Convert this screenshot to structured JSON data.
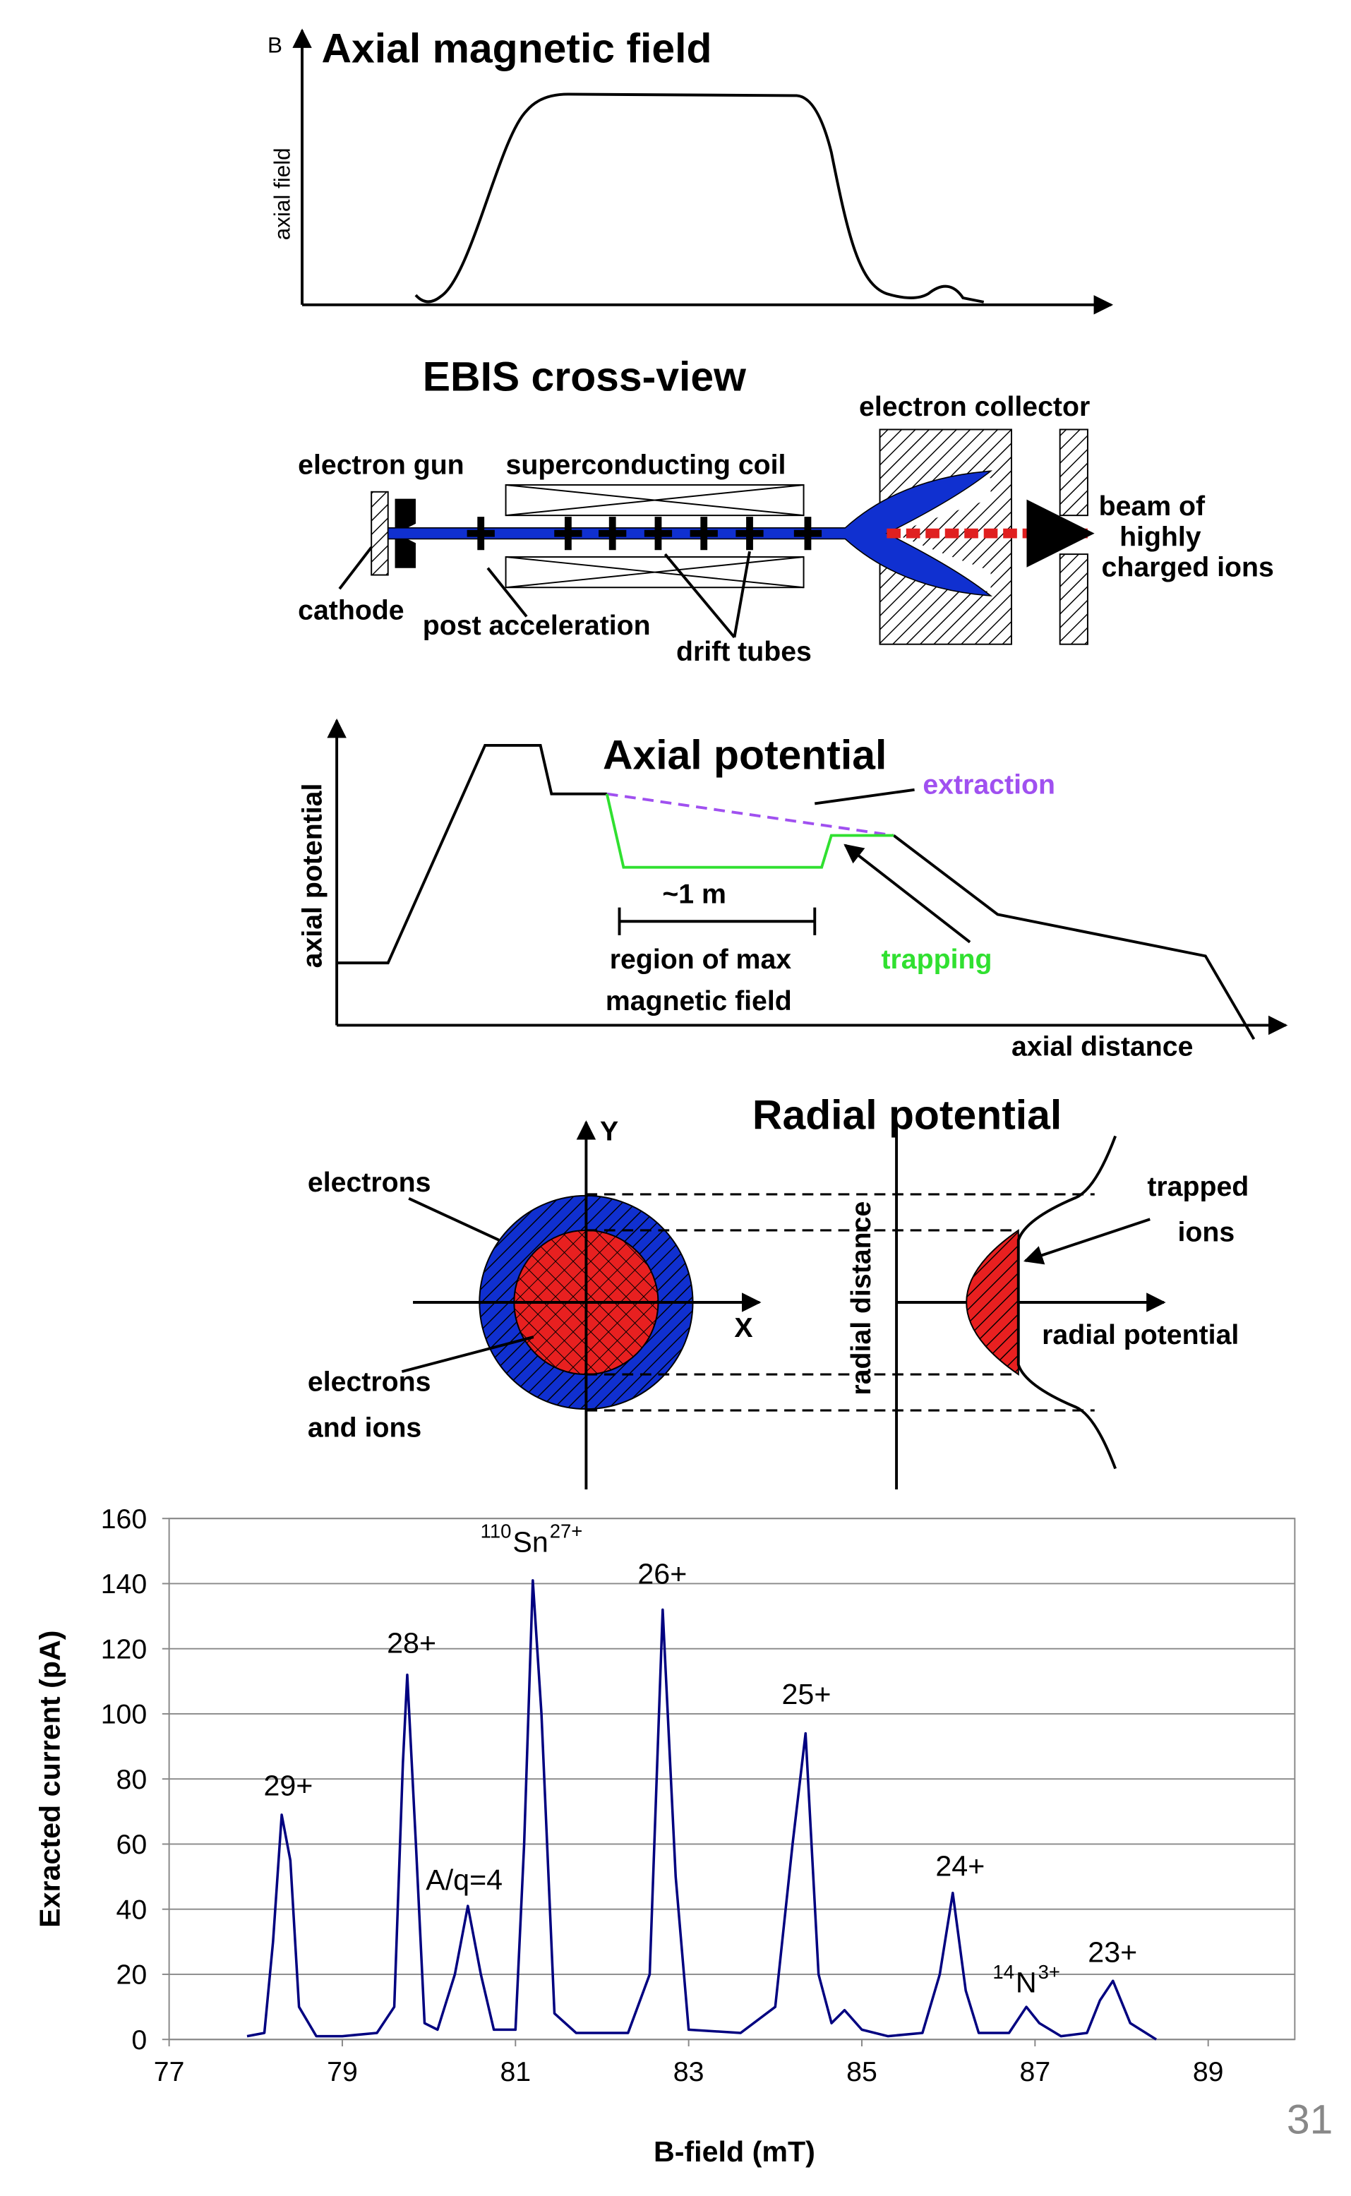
{
  "magnetic_field": {
    "symbol": "B",
    "title": "Axial magnetic field",
    "y_label": "axial field"
  },
  "cross_view": {
    "title": "EBIS cross-view",
    "labels": [
      "electron collector",
      "electron gun",
      "superconducting coil",
      "beam of",
      "highly",
      "charged ions",
      "cathode",
      "post acceleration",
      "drift tubes"
    ]
  },
  "axial_potential": {
    "title": "Axial potential",
    "labels": [
      "extraction",
      "~1 m",
      "region of max",
      "magnetic field",
      "trapping",
      "axial distance",
      "axial potential"
    ]
  },
  "radial_potential": {
    "title": "Radial potential",
    "labels": [
      "Y",
      "X",
      "electrons",
      "electrons",
      "and ions",
      "radial distance",
      "trapped",
      "ions",
      "radial potential"
    ]
  },
  "chart_data": {
    "type": "line",
    "x_label": "B-field (mT)",
    "y_label": "Exracted current (pA)",
    "xlim": [
      77,
      90
    ],
    "xticks": [
      77,
      79,
      81,
      83,
      85,
      87,
      89
    ],
    "ylim": [
      0,
      160
    ],
    "yticks": [
      0,
      20,
      40,
      60,
      80,
      100,
      120,
      140,
      160
    ],
    "grid": true,
    "series": [
      {
        "color": "#000080",
        "x": [
          77.9,
          78.1,
          78.2,
          78.3,
          78.4,
          78.5,
          78.7,
          79.0,
          79.4,
          79.6,
          79.7,
          79.75,
          79.85,
          79.95,
          80.1,
          80.3,
          80.45,
          80.6,
          80.75,
          81.0,
          81.1,
          81.2,
          81.3,
          81.45,
          81.7,
          82.3,
          82.55,
          82.7,
          82.85,
          83.0,
          83.6,
          84.0,
          84.2,
          84.35,
          84.5,
          84.65,
          84.8,
          85.0,
          85.3,
          85.7,
          85.9,
          86.05,
          86.2,
          86.35,
          86.7,
          86.9,
          87.05,
          87.3,
          87.6,
          87.75,
          87.9,
          88.1,
          88.4
        ],
        "values": [
          1,
          2,
          30,
          69,
          55,
          10,
          1,
          1,
          2,
          10,
          85,
          112,
          60,
          5,
          3,
          20,
          41,
          20,
          3,
          3,
          60,
          141,
          100,
          8,
          2,
          2,
          20,
          132,
          50,
          3,
          2,
          10,
          60,
          94,
          20,
          5,
          9,
          3,
          1,
          2,
          20,
          45,
          15,
          2,
          2,
          10,
          5,
          1,
          2,
          12,
          18,
          5,
          0
        ]
      }
    ],
    "annotations": [
      {
        "text": "29+"
      },
      {
        "text": "28+"
      },
      {
        "text": "A/q=4"
      },
      {
        "prefix": "110",
        "text": "Sn",
        "suffix": "27+"
      },
      {
        "text": "26+"
      },
      {
        "text": "25+"
      },
      {
        "text": "24+"
      },
      {
        "prefix": "14",
        "text": "N",
        "suffix": "3+"
      },
      {
        "text": "23+"
      }
    ]
  },
  "page_number": "31"
}
